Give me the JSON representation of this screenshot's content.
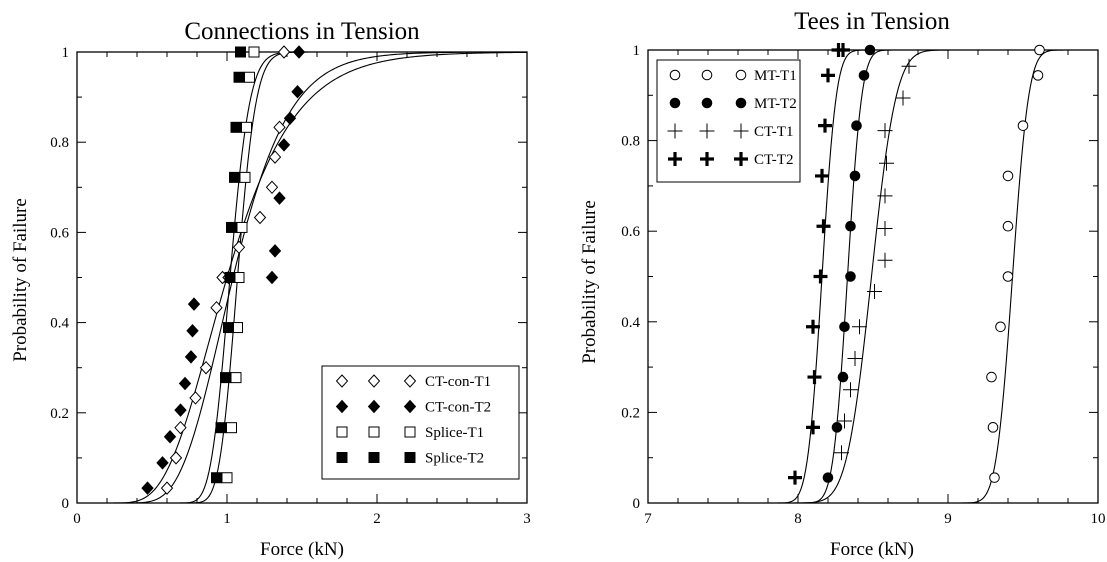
{
  "chart_data": [
    {
      "type": "scatter",
      "title": "Connections in Tension",
      "xlabel": "Force (kN)",
      "ylabel": "Probability of Failure",
      "xlim": [
        0,
        3
      ],
      "ylim": [
        0,
        1
      ],
      "xticks": [
        0,
        1,
        2,
        3
      ],
      "yticks": [
        0,
        0.2,
        0.4,
        0.6,
        0.8,
        1
      ],
      "xtick_labels": [
        "0",
        "1",
        "2",
        "3"
      ],
      "ytick_labels": [
        "0",
        "0.2",
        "0.4",
        "0.6",
        "0.8",
        "1"
      ],
      "legend_position": "bottom-right",
      "grid": false,
      "series": [
        {
          "name": "CT-con-T1",
          "marker": "diamond-open",
          "x": [
            0.6,
            0.66,
            0.69,
            0.79,
            0.86,
            0.93,
            0.97,
            1.01,
            1.08,
            1.22,
            1.3,
            1.32,
            1.35,
            1.38
          ],
          "y": [
            0.033,
            0.1,
            0.167,
            0.233,
            0.3,
            0.433,
            0.5,
            0.5,
            0.567,
            0.633,
            0.7,
            0.767,
            0.833,
            1.0
          ],
          "fit": {
            "model": "lognormal-cdf",
            "median": 1.0,
            "sigma": 0.35
          }
        },
        {
          "name": "CT-con-T2",
          "marker": "diamond-filled",
          "x": [
            0.47,
            0.57,
            0.62,
            0.69,
            0.72,
            0.76,
            0.77,
            0.78,
            1.3,
            1.32,
            1.35,
            1.38,
            1.42,
            1.47,
            1.48
          ],
          "y": [
            0.033,
            0.089,
            0.147,
            0.206,
            0.265,
            0.324,
            0.382,
            0.441,
            0.5,
            0.559,
            0.676,
            0.794,
            0.853,
            0.912,
            1.0
          ],
          "fit": {
            "model": "lognormal-cdf",
            "median": 1.04,
            "sigma": 0.28
          }
        },
        {
          "name": "Splice-T1",
          "marker": "square-open",
          "x": [
            1.0,
            1.03,
            1.06,
            1.07,
            1.08,
            1.1,
            1.12,
            1.13,
            1.15,
            1.18
          ],
          "y": [
            0.056,
            0.167,
            0.278,
            0.389,
            0.5,
            0.611,
            0.722,
            0.833,
            0.944,
            1.0
          ],
          "fit": {
            "model": "lognormal-cdf",
            "median": 1.07,
            "sigma": 0.09
          }
        },
        {
          "name": "Splice-T2",
          "marker": "square-filled",
          "x": [
            0.93,
            0.96,
            0.99,
            1.01,
            1.02,
            1.03,
            1.05,
            1.06,
            1.08,
            1.09
          ],
          "y": [
            0.056,
            0.167,
            0.278,
            0.389,
            0.5,
            0.611,
            0.722,
            0.833,
            0.944,
            1.0
          ],
          "fit": {
            "model": "lognormal-cdf",
            "median": 1.02,
            "sigma": 0.1
          }
        }
      ]
    },
    {
      "type": "scatter",
      "title": "Tees in Tension",
      "xlabel": "Force (kN)",
      "ylabel": "Probability of Failure",
      "xlim": [
        7,
        10
      ],
      "ylim": [
        0,
        1
      ],
      "xticks": [
        7,
        8,
        9,
        10
      ],
      "yticks": [
        0,
        0.2,
        0.4,
        0.6,
        0.8,
        1
      ],
      "xtick_labels": [
        "7",
        "8",
        "9",
        "10"
      ],
      "ytick_labels": [
        "0",
        "0.2",
        "0.4",
        "0.6",
        "0.8",
        "1"
      ],
      "legend_position": "top-left",
      "grid": false,
      "series": [
        {
          "name": "MT-T1",
          "marker": "circle-open",
          "x": [
            9.31,
            9.3,
            9.29,
            9.35,
            9.4,
            9.4,
            9.4,
            9.5,
            9.6,
            9.61
          ],
          "y": [
            0.056,
            0.167,
            0.278,
            0.389,
            0.5,
            0.611,
            0.722,
            0.833,
            0.944,
            1.0
          ],
          "fit": {
            "model": "normal-cdf",
            "mean": 9.43,
            "sd": 0.085
          }
        },
        {
          "name": "MT-T2",
          "marker": "circle-filled",
          "x": [
            8.2,
            8.26,
            8.3,
            8.31,
            8.35,
            8.35,
            8.38,
            8.39,
            8.44,
            8.48
          ],
          "y": [
            0.056,
            0.167,
            0.278,
            0.389,
            0.5,
            0.611,
            0.722,
            0.833,
            0.944,
            1.0
          ],
          "fit": {
            "model": "normal-cdf",
            "mean": 8.33,
            "sd": 0.075
          }
        },
        {
          "name": "CT-T1",
          "marker": "plus-thin",
          "x": [
            8.29,
            8.31,
            8.35,
            8.38,
            8.41,
            8.51,
            8.58,
            8.58,
            8.58,
            8.59,
            8.58,
            8.7,
            8.74
          ],
          "y": [
            0.111,
            0.181,
            0.25,
            0.319,
            0.389,
            0.467,
            0.536,
            0.606,
            0.678,
            0.75,
            0.822,
            0.894,
            0.964
          ],
          "fit": {
            "model": "normal-cdf",
            "mean": 8.49,
            "sd": 0.13
          }
        },
        {
          "name": "CT-T2",
          "marker": "plus-bold",
          "x": [
            7.98,
            8.1,
            8.11,
            8.1,
            8.15,
            8.17,
            8.16,
            8.18,
            8.2,
            8.27,
            8.3
          ],
          "y": [
            0.056,
            0.167,
            0.278,
            0.389,
            0.5,
            0.611,
            0.722,
            0.833,
            0.944,
            1.0,
            1.0
          ],
          "fit": {
            "model": "normal-cdf",
            "mean": 8.16,
            "sd": 0.075
          }
        }
      ]
    }
  ]
}
